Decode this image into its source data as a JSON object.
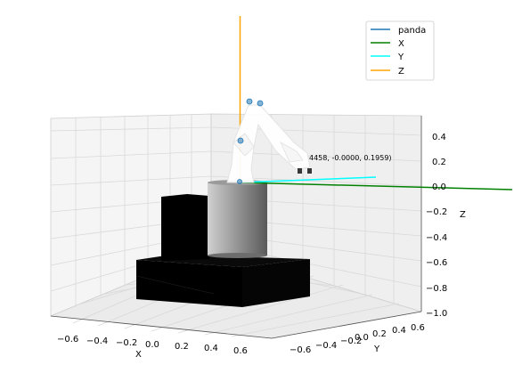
{
  "window": {
    "title": ""
  },
  "plot": {
    "legend": {
      "placement": "top-right",
      "entries": [
        {
          "label": "panda",
          "color": "#1f77b4"
        },
        {
          "label": "X",
          "color": "#008000"
        },
        {
          "label": "Y",
          "color": "#00ffff"
        },
        {
          "label": "Z",
          "color": "#ffa500"
        }
      ]
    },
    "axes": {
      "x": {
        "label": "X",
        "ticks": [
          "−0.6",
          "−0.4",
          "−0.2",
          "0.0",
          "0.2",
          "0.4",
          "0.6"
        ]
      },
      "y": {
        "label": "Y",
        "ticks": [
          "−0.6",
          "−0.4",
          "−0.2",
          "0.0",
          "0.2",
          "0.4",
          "0.6"
        ]
      },
      "z": {
        "label": "Z",
        "ticks": [
          "0.4",
          "0.2",
          "0.0",
          "−0.2",
          "−0.4",
          "−0.6",
          "−0.8",
          "−1.0"
        ]
      }
    },
    "annotation": "4458, -0.0000, 0.1959)",
    "view": "3d-perspective",
    "grid": true,
    "colors": {
      "pane": "#f2f2f2",
      "grid": "#d9d9d9",
      "base": "#000000",
      "pedestal": "#8c8c8c",
      "joint_marker": "#1f77b4"
    },
    "icons": [
      "robot-arm-model",
      "joint-marker",
      "gripper"
    ]
  }
}
